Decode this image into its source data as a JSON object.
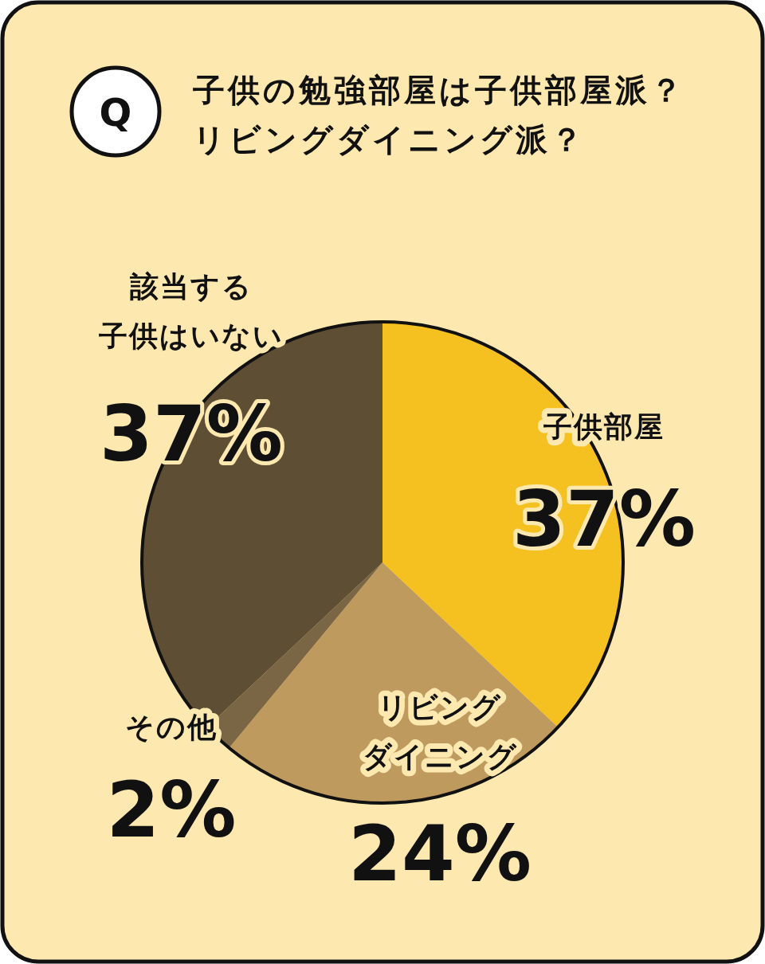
{
  "chart_data": {
    "type": "pie",
    "title": "子供の勉強部屋は子供部屋派？",
    "subtitle": "リビングダイニング派？",
    "annotations": [
      "Q"
    ],
    "categories": [
      "子供部屋",
      "リビングダイニング",
      "その他",
      "該当する子供はいない"
    ],
    "values": [
      37,
      24,
      2,
      37
    ],
    "value_labels": [
      "37%",
      "24%",
      "2%",
      "37%"
    ],
    "colors": [
      "#f5c120",
      "#bf9a5e",
      "#7a6545",
      "#5e4e33"
    ]
  }
}
